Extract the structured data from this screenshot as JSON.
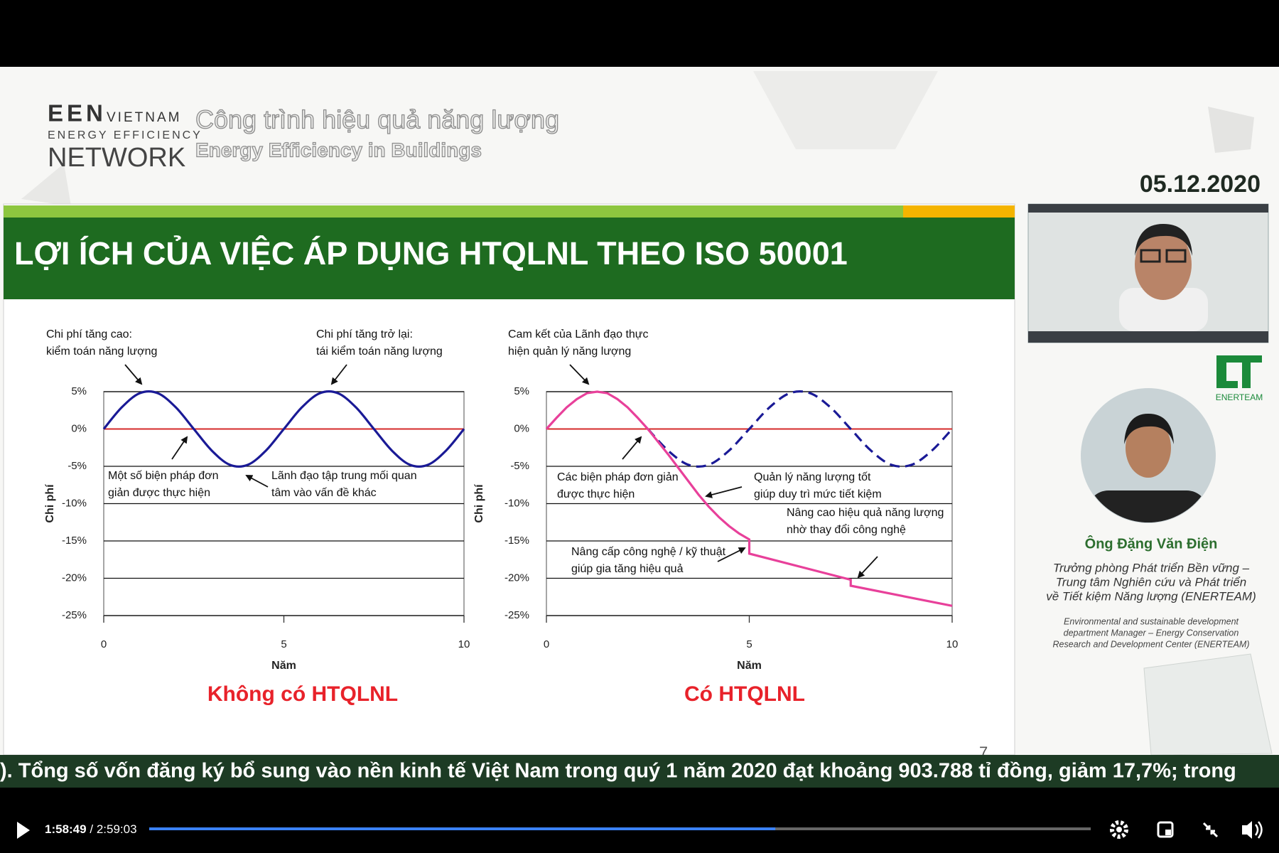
{
  "header": {
    "logo_mark": "EEN",
    "logo_country": "VIETNAM",
    "logo_line2": "ENERGY EFFICIENCY",
    "logo_line3": "NETWORK",
    "title_vi": "Công trình hiệu quả năng lượng",
    "title_en": "Energy Efficiency in Buildings",
    "date": "05.12.2020"
  },
  "slide": {
    "title": "LỢI ÍCH CỦA VIỆC ÁP DỤNG HTQLNL THEO ISO 50001",
    "page_number": "7"
  },
  "speaker": {
    "logo": "ENERTEAM",
    "name": "Ông Đặng Văn Điện",
    "role_vi": [
      "Trưởng phòng Phát triển Bền vững –",
      "Trung tâm Nghiên cứu và Phát triển",
      "về Tiết kiệm Năng lượng (ENERTEAM)"
    ],
    "role_en": [
      "Environmental and sustainable development",
      "department Manager – Energy Conservation",
      "Research and Development Center (ENERTEAM)"
    ]
  },
  "ticker": "). Tổng số vốn đăng ký bổ sung vào nền kinh tế Việt Nam trong quý 1 năm 2020 đạt khoảng 903.788 tỉ đồng, giảm 17,7%; trong",
  "player": {
    "time": "1:58:49",
    "separator": "/",
    "duration": "2:59:03",
    "progress": 0.665
  },
  "chart_data": [
    {
      "type": "line",
      "caption": "Không có HTQLNL",
      "xlabel": "Năm",
      "ylabel": "Chi phí",
      "xlim": [
        0,
        10
      ],
      "ylim": [
        -25,
        5
      ],
      "xticks": [
        0,
        5,
        10
      ],
      "yticks": [
        {
          "value": 5,
          "label": "5%"
        },
        {
          "value": 0,
          "label": "0%"
        },
        {
          "value": -5,
          "label": "-5%"
        },
        {
          "value": -10,
          "label": "-10%"
        },
        {
          "value": -15,
          "label": "-15%"
        },
        {
          "value": -20,
          "label": "-20%"
        },
        {
          "value": -25,
          "label": "-25%"
        }
      ],
      "grid": true,
      "baseline_color": "#d42a2a",
      "series": [
        {
          "color": "#1a1a96",
          "style": "solid",
          "smooth": true,
          "x": [
            0,
            0.5,
            1,
            1.5,
            2,
            2.5,
            3,
            3.5,
            4,
            4.5,
            5,
            5.5,
            6,
            6.5,
            7,
            7.5,
            8,
            8.5,
            9,
            9.5,
            10
          ],
          "values": [
            0,
            2.9,
            4.8,
            4.8,
            2.9,
            0,
            -2.9,
            -4.8,
            -4.8,
            -2.9,
            0,
            2.9,
            4.8,
            4.8,
            2.9,
            0,
            -2.9,
            -4.8,
            -4.8,
            -2.9,
            0
          ]
        }
      ],
      "annotations": [
        {
          "lines": [
            "Chi phí tăng cao:",
            "kiểm toán năng lượng"
          ]
        },
        {
          "lines": [
            "Chi phí tăng trở lại:",
            "tái kiểm toán năng lượng"
          ]
        },
        {
          "lines": [
            "Một số biện pháp đơn",
            "giản được thực hiện"
          ]
        },
        {
          "lines": [
            "Lãnh đạo tập trung mối quan",
            "tâm vào vấn đề khác"
          ]
        }
      ]
    },
    {
      "type": "line",
      "caption": "Có HTQLNL",
      "xlabel": "Năm",
      "ylabel": "Chi phí",
      "xlim": [
        0,
        10
      ],
      "ylim": [
        -25,
        5
      ],
      "xticks": [
        0,
        5,
        10
      ],
      "yticks": [
        {
          "value": 5,
          "label": "5%"
        },
        {
          "value": 0,
          "label": "0%"
        },
        {
          "value": -5,
          "label": "-5%"
        },
        {
          "value": -10,
          "label": "-10%"
        },
        {
          "value": -15,
          "label": "-15%"
        },
        {
          "value": -20,
          "label": "-20%"
        },
        {
          "value": -25,
          "label": "-25%"
        }
      ],
      "grid": true,
      "baseline_color": "#d42a2a",
      "series": [
        {
          "color": "#1a1a96",
          "style": "dashed",
          "smooth": true,
          "x": [
            2.5,
            3,
            3.5,
            4,
            4.5,
            5,
            5.5,
            6,
            6.5,
            7,
            7.5,
            8,
            8.5,
            9,
            9.5,
            10
          ],
          "values": [
            0,
            -2.9,
            -4.8,
            -4.8,
            -2.9,
            0,
            2.9,
            4.8,
            4.8,
            2.9,
            0,
            -2.9,
            -4.8,
            -4.8,
            -2.9,
            0
          ]
        },
        {
          "color": "#e8409a",
          "style": "solid",
          "smooth": false,
          "x": [
            0,
            0.25,
            0.5,
            0.75,
            1,
            1.25,
            1.5,
            1.75,
            2,
            2.25,
            2.5,
            2.75,
            3,
            3.25,
            3.5,
            3.75,
            4,
            4.25,
            4.5,
            4.75,
            5,
            5,
            7.5,
            7.5,
            10
          ],
          "values": [
            0,
            1.5,
            2.9,
            4.0,
            4.8,
            5,
            4.8,
            4.0,
            2.9,
            1.5,
            0,
            -1.7,
            -3.4,
            -5.2,
            -7.0,
            -8.8,
            -10.4,
            -11.8,
            -13.0,
            -14.0,
            -14.8,
            -16.7,
            -20.2,
            -21.0,
            -23.7
          ]
        }
      ],
      "annotations": [
        {
          "lines": [
            "Cam kết của Lãnh đạo thực",
            "hiện quản lý năng lượng"
          ]
        },
        {
          "lines": [
            "Các biện pháp đơn giản",
            "được thực hiện"
          ]
        },
        {
          "lines": [
            "Quản lý năng lượng tốt",
            "giúp duy trì mức tiết kiệm"
          ]
        },
        {
          "lines": [
            "Nâng cao hiệu quả năng lượng",
            "nhờ thay đổi công nghệ"
          ]
        },
        {
          "lines": [
            "Nâng cấp công nghệ / kỹ thuật",
            "giúp gia tăng hiệu quả"
          ]
        }
      ]
    }
  ]
}
